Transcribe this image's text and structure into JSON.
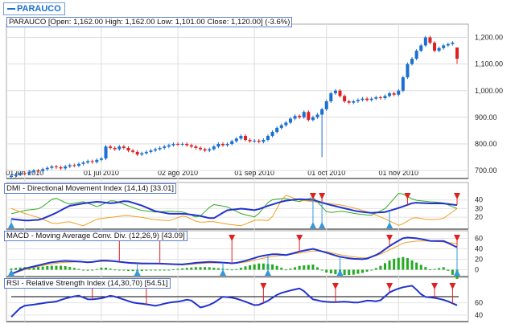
{
  "legend": {
    "label": "PARAUCO"
  },
  "titles": {
    "price": "PARAUCO [Open: 1,162.00  High: 1,162.00  Low: 1,101.00  Close: 1,120.00] (-3.6%)",
    "dmi": "DMI - Directional Movement Index (14,14) [33.01]",
    "macd": "MACD - Moving Average Conv. Div. (12,26,9) [43.09]",
    "rsi": "RSI - Relative Strength Index (14,30,70) [54.51]"
  },
  "colors": {
    "up": "#1a6fd0",
    "down": "#e02020",
    "blue": "#2233cc",
    "green": "#33aa22",
    "orange": "#f0a020"
  },
  "chart_data": {
    "type": "candlestick",
    "closes": [
      680,
      685,
      690,
      688,
      695,
      700,
      698,
      705,
      710,
      715,
      712,
      708,
      715,
      720,
      718,
      725,
      730,
      735,
      732,
      740,
      745,
      790,
      785,
      780,
      790,
      785,
      775,
      770,
      760,
      765,
      770,
      775,
      780,
      785,
      790,
      795,
      800,
      798,
      800,
      795,
      790,
      785,
      780,
      775,
      780,
      790,
      800,
      795,
      800,
      810,
      820,
      830,
      815,
      810,
      812,
      808,
      815,
      830,
      845,
      860,
      870,
      880,
      895,
      905,
      900,
      920,
      890,
      900,
      910,
      930,
      960,
      990,
      1000,
      980,
      960,
      955,
      960,
      965,
      970,
      965,
      970,
      975,
      972,
      980,
      990,
      985,
      1000,
      1050,
      1100,
      1120,
      1150,
      1170,
      1200,
      1180,
      1150,
      1160,
      1170,
      1175,
      1180,
      1120
    ],
    "last": {
      "open": 1162,
      "high": 1162,
      "low": 1101,
      "close": 1120
    },
    "outlier": {
      "index": 69,
      "low": 750
    },
    "x_ticks": [
      {
        "i": 3,
        "label": "01 jun 2010"
      },
      {
        "i": 20,
        "label": "01 jul 2010"
      },
      {
        "i": 37,
        "label": "02 ago 2010"
      },
      {
        "i": 54,
        "label": "01 sep 2010"
      },
      {
        "i": 70,
        "label": "01 oct 2010"
      },
      {
        "i": 86,
        "label": "01 nov 2010"
      }
    ],
    "y_ticks": [
      {
        "v": 700,
        "label": "700.00"
      },
      {
        "v": 800,
        "label": "800.00"
      },
      {
        "v": 900,
        "label": "900.00"
      },
      {
        "v": 1000,
        "label": "1,000.00"
      },
      {
        "v": 1100,
        "label": "1,100.00"
      },
      {
        "v": 1200,
        "label": "1,200.00"
      }
    ],
    "ylim": [
      670,
      1250
    ],
    "dmi": {
      "ylim": [
        8,
        50
      ],
      "ticks": [
        {
          "v": 20,
          "label": "20"
        },
        {
          "v": 30,
          "label": "30"
        },
        {
          "v": 40,
          "label": "40"
        }
      ],
      "adx": [
        18,
        16,
        17,
        24,
        33,
        36,
        38,
        36,
        39,
        34,
        27,
        24,
        24,
        22,
        18,
        28,
        30,
        28,
        34,
        39,
        41,
        40,
        35,
        31,
        27,
        25,
        26,
        31,
        37,
        36,
        36,
        34
      ],
      "plus_di": [
        24,
        28,
        30,
        43,
        35,
        38,
        32,
        40,
        34,
        28,
        26,
        27,
        26,
        19,
        35,
        32,
        24,
        20,
        40,
        42,
        38,
        43,
        25,
        27,
        24,
        22,
        30,
        49,
        40,
        38,
        37,
        30
      ],
      "minus_di": [
        30,
        24,
        19,
        12,
        15,
        10,
        18,
        20,
        22,
        20,
        17,
        16,
        22,
        14,
        15,
        12,
        10,
        17,
        16,
        46,
        40,
        38,
        36,
        34,
        30,
        25,
        18,
        10,
        20,
        17,
        18,
        30
      ],
      "sell": [
        67,
        69,
        88,
        99
      ],
      "buy": [
        0,
        67,
        69,
        84
      ]
    },
    "macd": {
      "ylim": [
        -10,
        70
      ],
      "ticks": [
        {
          "v": 0,
          "label": "0"
        },
        {
          "v": 20,
          "label": "20"
        },
        {
          "v": 40,
          "label": "40"
        },
        {
          "v": 60,
          "label": "60"
        }
      ],
      "macd": [
        -8,
        2,
        8,
        14,
        17,
        16,
        14,
        18,
        16,
        13,
        12,
        12,
        11,
        10,
        13,
        15,
        14,
        12,
        18,
        26,
        30,
        28,
        35,
        40,
        33,
        25,
        21,
        20,
        30,
        48,
        62,
        60,
        55,
        55,
        43
      ],
      "signal": [
        -9,
        0,
        6,
        11,
        14,
        15,
        15,
        16,
        16,
        14,
        13,
        12,
        11,
        9,
        11,
        13,
        13,
        12,
        15,
        21,
        26,
        28,
        32,
        36,
        35,
        29,
        25,
        22,
        28,
        40,
        52,
        55,
        55,
        53,
        50
      ],
      "sell": [
        24,
        33,
        49,
        64,
        84,
        99
      ],
      "buy": [
        0,
        28,
        47,
        57,
        73,
        99
      ]
    },
    "rsi": {
      "ylim": [
        32,
        95
      ],
      "ticks": [
        {
          "v": 40,
          "label": "40"
        },
        {
          "v": 60,
          "label": "60"
        }
      ],
      "overbought": 70,
      "values": [
        37,
        55,
        57,
        60,
        62,
        68,
        72,
        65,
        67,
        72,
        66,
        60,
        58,
        55,
        60,
        62,
        66,
        52,
        58,
        70,
        68,
        62,
        55,
        63,
        75,
        80,
        84,
        66,
        62,
        61,
        62,
        60,
        64,
        62,
        78,
        85,
        88,
        70,
        68,
        64,
        56
      ],
      "sell": [
        18,
        30,
        56,
        72,
        84,
        94,
        98
      ]
    }
  }
}
